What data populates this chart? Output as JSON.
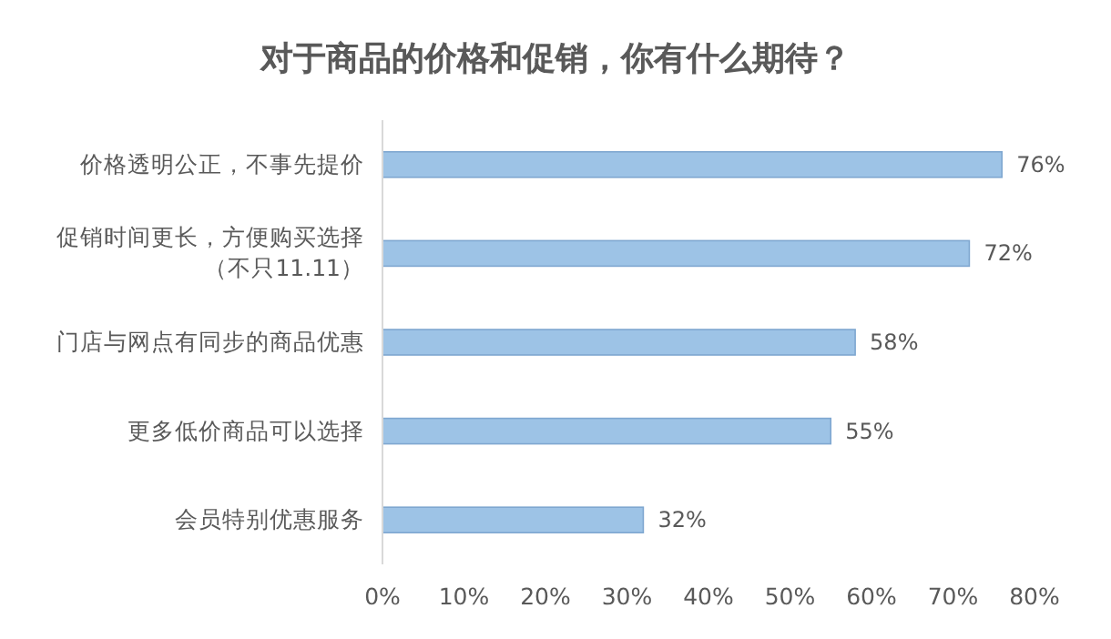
{
  "chart_data": {
    "type": "bar",
    "orientation": "horizontal",
    "title": "对于商品的价格和促销，你有什么期待？",
    "categories": [
      "价格透明公正，不事先提价",
      "促销时间更长，方便购买选择（不只11.11）",
      "门店与网点有同步的商品优惠",
      "更多低价商品可以选择",
      "会员特别优惠服务"
    ],
    "values": [
      76,
      72,
      58,
      55,
      32
    ],
    "value_labels": [
      "76%",
      "72%",
      "58%",
      "55%",
      "32%"
    ],
    "color": "#9dc3e6",
    "xlim": [
      0,
      80
    ],
    "xticks": [
      {
        "value": 0,
        "label": "0%"
      },
      {
        "value": 10,
        "label": "10%"
      },
      {
        "value": 20,
        "label": "20%"
      },
      {
        "value": 30,
        "label": "30%"
      },
      {
        "value": 40,
        "label": "40%"
      },
      {
        "value": 50,
        "label": "50%"
      },
      {
        "value": 60,
        "label": "60%"
      },
      {
        "value": 70,
        "label": "70%"
      },
      {
        "value": 80,
        "label": "80%"
      }
    ],
    "grid": false
  }
}
